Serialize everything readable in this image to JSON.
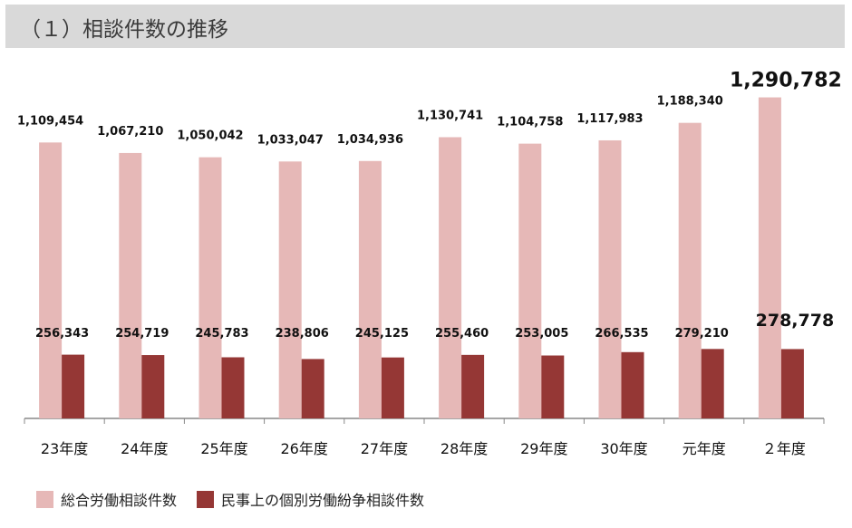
{
  "header": {
    "title": "（１）相談件数の推移"
  },
  "colors": {
    "header_bg": "#d9d9d9",
    "series_total": "#e6b8b7",
    "series_dispute": "#953735",
    "axis": "#888888"
  },
  "chart_data": {
    "type": "bar",
    "categories": [
      "23年度",
      "24年度",
      "25年度",
      "26年度",
      "27年度",
      "28年度",
      "29年度",
      "30年度",
      "元年度",
      "２年度"
    ],
    "series": [
      {
        "name": "総合労働相談件数",
        "values": [
          1109454,
          1067210,
          1050042,
          1033047,
          1034936,
          1130741,
          1104758,
          1117983,
          1188340,
          1290782
        ],
        "labels": [
          "1,109,454",
          "1,067,210",
          "1,050,042",
          "1,033,047",
          "1,034,936",
          "1,130,741",
          "1,104,758",
          "1,117,983",
          "1,188,340",
          "1,290,782"
        ]
      },
      {
        "name": "民事上の個別労働紛争相談件数",
        "values": [
          256343,
          254719,
          245783,
          238806,
          245125,
          255460,
          253005,
          266535,
          279210,
          278778
        ],
        "labels": [
          "256,343",
          "254,719",
          "245,783",
          "238,806",
          "245,125",
          "255,460",
          "253,005",
          "266,535",
          "279,210",
          "278,778"
        ]
      }
    ],
    "ylim": [
      0,
      1300000
    ],
    "legend_position": "bottom-left",
    "grid": false
  }
}
